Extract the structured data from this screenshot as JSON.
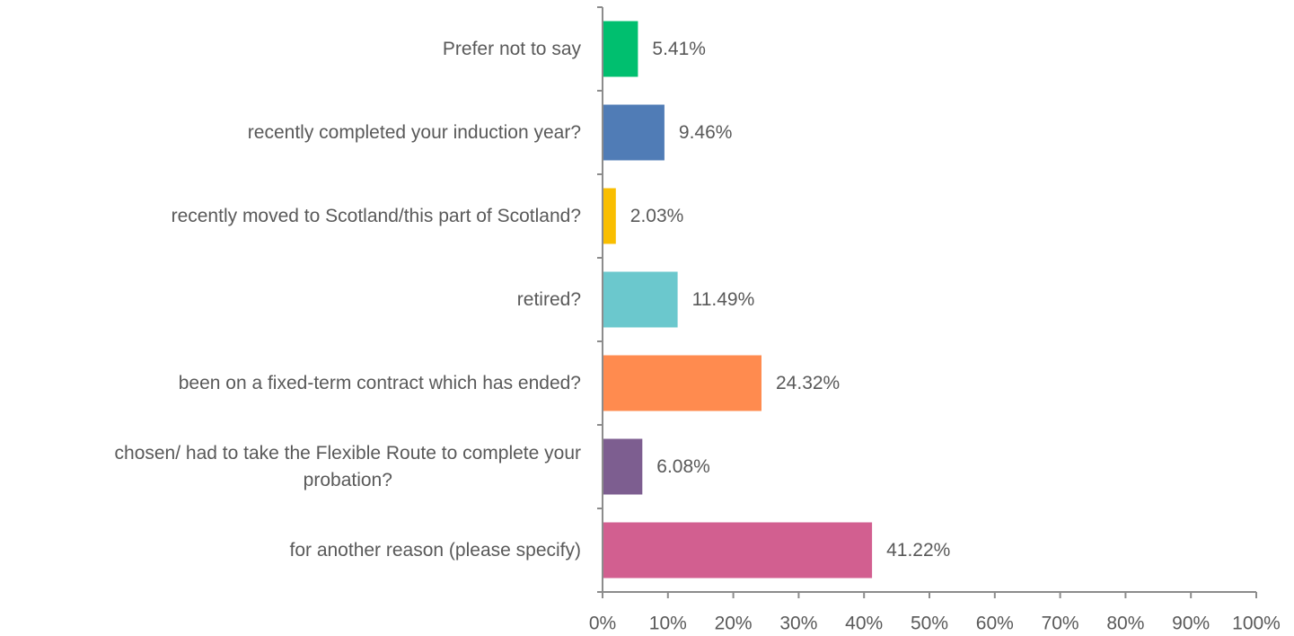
{
  "chart_data": {
    "type": "bar",
    "orientation": "horizontal",
    "title": "",
    "xlabel": "",
    "ylabel": "",
    "xlim": [
      0,
      100
    ],
    "grid": false,
    "legend": "none",
    "categories": [
      "Prefer not to say",
      "recently completed your induction year?",
      "recently moved to Scotland/this part of Scotland?",
      "retired?",
      "been on a fixed-term contract which has ended?",
      "chosen/ had to take the Flexible Route to complete your probation?",
      "for another reason (please specify)"
    ],
    "category_lines": [
      [
        "Prefer not to say"
      ],
      [
        "recently completed your induction year?"
      ],
      [
        "recently moved to Scotland/this part of Scotland?"
      ],
      [
        "retired?"
      ],
      [
        "been on a fixed-term contract which has ended?"
      ],
      [
        "chosen/ had to take the Flexible Route to complete your",
        "probation?"
      ],
      [
        "for another reason (please specify)"
      ]
    ],
    "values": [
      5.41,
      9.46,
      2.03,
      11.49,
      24.32,
      6.08,
      41.22
    ],
    "data_labels": [
      "5.41%",
      "9.46%",
      "2.03%",
      "11.49%",
      "24.32%",
      "6.08%",
      "41.22%"
    ],
    "colors": [
      "#00BF6F",
      "#507CB6",
      "#F9BE00",
      "#6BC8CD",
      "#FF8B4F",
      "#7D5E90",
      "#D25F90"
    ],
    "ticks": [
      0,
      10,
      20,
      30,
      40,
      50,
      60,
      70,
      80,
      90,
      100
    ],
    "tick_labels": [
      "0%",
      "10%",
      "20%",
      "30%",
      "40%",
      "50%",
      "60%",
      "70%",
      "80%",
      "90%",
      "100%"
    ]
  }
}
